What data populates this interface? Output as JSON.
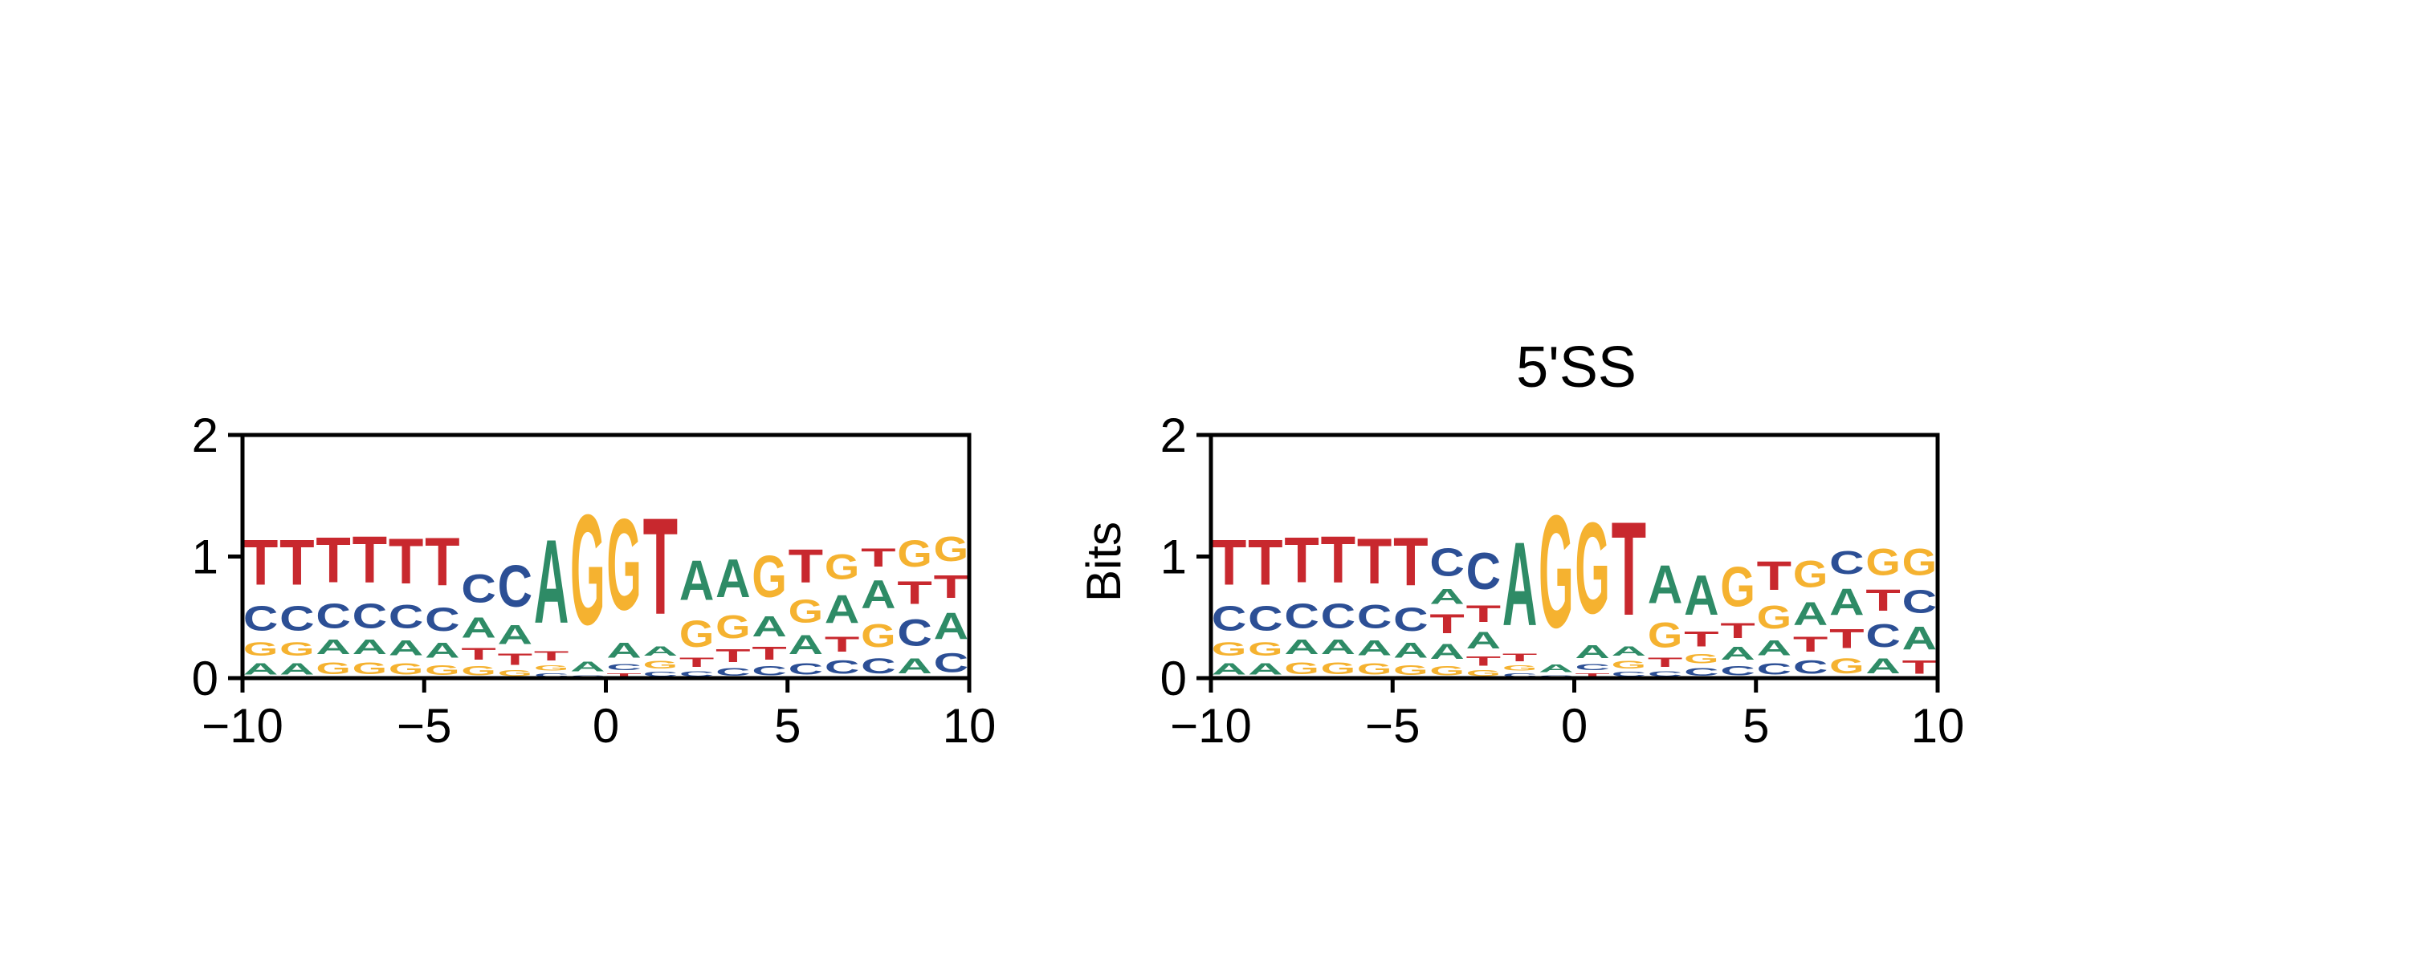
{
  "colors": {
    "A": "#2e8b66",
    "C": "#2c4f95",
    "G": "#f5b230",
    "T": "#c8282e"
  },
  "chart_data": [
    {
      "type": "sequence_logo",
      "title": "",
      "xlabel": "",
      "ylabel": "",
      "xlim": [
        -10,
        10
      ],
      "ylim": [
        0,
        2
      ],
      "xticks": [
        "−10",
        "−5",
        "0",
        "5",
        "10"
      ],
      "yticks": [
        "0",
        "1",
        "2"
      ],
      "alphabet": [
        "A",
        "C",
        "G",
        "T"
      ],
      "positions": [
        {
          "pos": -9.5,
          "stack": [
            [
              "A",
              0.15
            ],
            [
              "G",
              0.18
            ],
            [
              "C",
              0.32
            ],
            [
              "T",
              0.6
            ]
          ]
        },
        {
          "pos": -8.5,
          "stack": [
            [
              "A",
              0.15
            ],
            [
              "G",
              0.18
            ],
            [
              "C",
              0.32
            ],
            [
              "T",
              0.6
            ]
          ]
        },
        {
          "pos": -7.5,
          "stack": [
            [
              "G",
              0.16
            ],
            [
              "A",
              0.19
            ],
            [
              "C",
              0.32
            ],
            [
              "T",
              0.6
            ]
          ]
        },
        {
          "pos": -6.5,
          "stack": [
            [
              "G",
              0.16
            ],
            [
              "A",
              0.19
            ],
            [
              "C",
              0.32
            ],
            [
              "T",
              0.61
            ]
          ]
        },
        {
          "pos": -5.5,
          "stack": [
            [
              "G",
              0.15
            ],
            [
              "A",
              0.2
            ],
            [
              "C",
              0.31
            ],
            [
              "T",
              0.6
            ]
          ]
        },
        {
          "pos": -4.5,
          "stack": [
            [
              "G",
              0.13
            ],
            [
              "A",
              0.2
            ],
            [
              "C",
              0.31
            ],
            [
              "T",
              0.63
            ]
          ]
        },
        {
          "pos": -3.5,
          "stack": [
            [
              "G",
              0.12
            ],
            [
              "T",
              0.16
            ],
            [
              "A",
              0.27
            ],
            [
              "C",
              0.37
            ]
          ]
        },
        {
          "pos": -2.5,
          "stack": [
            [
              "G",
              0.08
            ],
            [
              "T",
              0.15
            ],
            [
              "A",
              0.25
            ],
            [
              "C",
              0.55
            ]
          ]
        },
        {
          "pos": -1.5,
          "stack": [
            [
              "C",
              0.05
            ],
            [
              "G",
              0.07
            ],
            [
              "T",
              0.12
            ],
            [
              "A",
              1.1
            ]
          ]
        },
        {
          "pos": -0.5,
          "stack": [
            [
              "C",
              0.03
            ],
            [
              "A",
              0.13
            ],
            [
              "G",
              1.45
            ]
          ]
        },
        {
          "pos": 0.5,
          "stack": [
            [
              "T",
              0.05
            ],
            [
              "C",
              0.08
            ],
            [
              "A",
              0.2
            ],
            [
              "G",
              1.2
            ]
          ]
        },
        {
          "pos": 1.5,
          "stack": [
            [
              "C",
              0.06
            ],
            [
              "G",
              0.1
            ],
            [
              "A",
              0.12
            ],
            [
              "T",
              1.27
            ]
          ]
        },
        {
          "pos": 2.5,
          "stack": [
            [
              "C",
              0.07
            ],
            [
              "T",
              0.12
            ],
            [
              "G",
              0.35
            ],
            [
              "A",
              0.52
            ]
          ]
        },
        {
          "pos": 3.5,
          "stack": [
            [
              "C",
              0.1
            ],
            [
              "T",
              0.17
            ],
            [
              "G",
              0.3
            ],
            [
              "A",
              0.5
            ]
          ]
        },
        {
          "pos": 4.5,
          "stack": [
            [
              "C",
              0.12
            ],
            [
              "T",
              0.17
            ],
            [
              "A",
              0.27
            ],
            [
              "G",
              0.55
            ]
          ]
        },
        {
          "pos": 5.5,
          "stack": [
            [
              "C",
              0.15
            ],
            [
              "A",
              0.25
            ],
            [
              "G",
              0.3
            ],
            [
              "T",
              0.44
            ]
          ]
        },
        {
          "pos": 6.5,
          "stack": [
            [
              "C",
              0.18
            ],
            [
              "T",
              0.2
            ],
            [
              "A",
              0.37
            ],
            [
              "G",
              0.33
            ]
          ]
        },
        {
          "pos": 7.5,
          "stack": [
            [
              "C",
              0.2
            ],
            [
              "G",
              0.3
            ],
            [
              "A",
              0.37
            ],
            [
              "T",
              0.24
            ]
          ]
        },
        {
          "pos": 8.5,
          "stack": [
            [
              "A",
              0.2
            ],
            [
              "C",
              0.35
            ],
            [
              "T",
              0.3
            ],
            [
              "G",
              0.35
            ]
          ]
        },
        {
          "pos": 9.5,
          "stack": [
            [
              "C",
              0.25
            ],
            [
              "A",
              0.35
            ],
            [
              "T",
              0.3
            ],
            [
              "G",
              0.32
            ]
          ]
        }
      ]
    },
    {
      "type": "sequence_logo",
      "title": "5'SS",
      "xlabel": "",
      "ylabel": "Bits",
      "xlim": [
        -10,
        10
      ],
      "ylim": [
        0,
        2
      ],
      "xticks": [
        "−10",
        "−5",
        "0",
        "5",
        "10"
      ],
      "yticks": [
        "0",
        "1",
        "2"
      ],
      "alphabet": [
        "A",
        "C",
        "G",
        "T"
      ],
      "positions": [
        {
          "pos": -9.5,
          "stack": [
            [
              "A",
              0.15
            ],
            [
              "G",
              0.18
            ],
            [
              "C",
              0.32
            ],
            [
              "T",
              0.6
            ]
          ]
        },
        {
          "pos": -8.5,
          "stack": [
            [
              "A",
              0.15
            ],
            [
              "G",
              0.18
            ],
            [
              "C",
              0.32
            ],
            [
              "T",
              0.6
            ]
          ]
        },
        {
          "pos": -7.5,
          "stack": [
            [
              "G",
              0.16
            ],
            [
              "A",
              0.19
            ],
            [
              "C",
              0.32
            ],
            [
              "T",
              0.6
            ]
          ]
        },
        {
          "pos": -6.5,
          "stack": [
            [
              "G",
              0.16
            ],
            [
              "A",
              0.19
            ],
            [
              "C",
              0.32
            ],
            [
              "T",
              0.61
            ]
          ]
        },
        {
          "pos": -5.5,
          "stack": [
            [
              "G",
              0.15
            ],
            [
              "A",
              0.2
            ],
            [
              "C",
              0.31
            ],
            [
              "T",
              0.6
            ]
          ]
        },
        {
          "pos": -4.5,
          "stack": [
            [
              "G",
              0.13
            ],
            [
              "A",
              0.2
            ],
            [
              "C",
              0.31
            ],
            [
              "T",
              0.63
            ]
          ]
        },
        {
          "pos": -3.5,
          "stack": [
            [
              "G",
              0.12
            ],
            [
              "A",
              0.2
            ],
            [
              "T",
              0.25
            ],
            [
              "A",
              0.2
            ],
            [
              "C",
              0.36
            ]
          ]
        },
        {
          "pos": -2.5,
          "stack": [
            [
              "G",
              0.08
            ],
            [
              "T",
              0.12
            ],
            [
              "A",
              0.22
            ],
            [
              "T",
              0.22
            ],
            [
              "C",
              0.48
            ]
          ]
        },
        {
          "pos": -1.5,
          "stack": [
            [
              "C",
              0.05
            ],
            [
              "G",
              0.07
            ],
            [
              "T",
              0.1
            ],
            [
              "A",
              1.1
            ]
          ]
        },
        {
          "pos": -0.5,
          "stack": [
            [
              "C",
              0.03
            ],
            [
              "A",
              0.1
            ],
            [
              "G",
              1.48
            ]
          ]
        },
        {
          "pos": 0.5,
          "stack": [
            [
              "T",
              0.05
            ],
            [
              "C",
              0.08
            ],
            [
              "A",
              0.17
            ],
            [
              "G",
              1.2
            ]
          ]
        },
        {
          "pos": 1.5,
          "stack": [
            [
              "C",
              0.06
            ],
            [
              "G",
              0.1
            ],
            [
              "A",
              0.12
            ],
            [
              "T",
              1.23
            ]
          ]
        },
        {
          "pos": 2.5,
          "stack": [
            [
              "C",
              0.07
            ],
            [
              "T",
              0.12
            ],
            [
              "G",
              0.33
            ],
            [
              "A",
              0.5
            ]
          ]
        },
        {
          "pos": 3.5,
          "stack": [
            [
              "C",
              0.1
            ],
            [
              "G",
              0.12
            ],
            [
              "T",
              0.2
            ],
            [
              "A",
              0.52
            ]
          ]
        },
        {
          "pos": 4.5,
          "stack": [
            [
              "C",
              0.12
            ],
            [
              "A",
              0.17
            ],
            [
              "T",
              0.2
            ],
            [
              "G",
              0.52
            ]
          ]
        },
        {
          "pos": 5.5,
          "stack": [
            [
              "C",
              0.15
            ],
            [
              "A",
              0.2
            ],
            [
              "G",
              0.3
            ],
            [
              "T",
              0.38
            ]
          ]
        },
        {
          "pos": 6.5,
          "stack": [
            [
              "C",
              0.18
            ],
            [
              "T",
              0.2
            ],
            [
              "A",
              0.3
            ],
            [
              "G",
              0.35
            ]
          ]
        },
        {
          "pos": 7.5,
          "stack": [
            [
              "G",
              0.2
            ],
            [
              "T",
              0.25
            ],
            [
              "A",
              0.35
            ],
            [
              "C",
              0.3
            ]
          ]
        },
        {
          "pos": 8.5,
          "stack": [
            [
              "A",
              0.2
            ],
            [
              "C",
              0.3
            ],
            [
              "T",
              0.28
            ],
            [
              "G",
              0.35
            ]
          ]
        },
        {
          "pos": 9.5,
          "stack": [
            [
              "T",
              0.18
            ],
            [
              "A",
              0.3
            ],
            [
              "C",
              0.3
            ],
            [
              "G",
              0.35
            ]
          ]
        }
      ]
    }
  ]
}
